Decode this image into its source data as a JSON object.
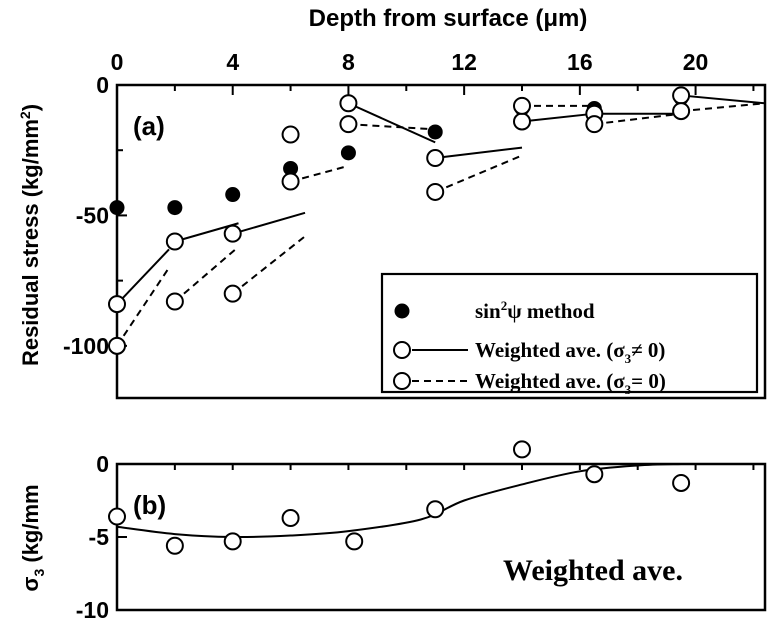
{
  "chart_data": [
    {
      "id": "a",
      "panel_label": "(a)",
      "type": "scatter",
      "xlabel": "Depth from surface (μm)",
      "ylabel_parts": [
        "Residual stress (kg/mm",
        "2",
        ")"
      ],
      "xlim": [
        0,
        22.4
      ],
      "ylim": [
        -120,
        0
      ],
      "x_ticks": [
        0,
        4,
        8,
        12,
        16,
        20
      ],
      "x_minor_ticks": [
        2,
        6,
        10,
        14,
        18,
        22
      ],
      "x_tick_labels": [
        "0",
        "4",
        "8",
        "12",
        "16",
        "20"
      ],
      "y_ticks": [
        0,
        -50,
        -100
      ],
      "y_tick_labels": [
        "0",
        "-50",
        "-100"
      ],
      "y_minor_ticks": [
        -25,
        -75
      ],
      "x_axis_position": "top",
      "legend_position": "bottom-right",
      "legend": [
        {
          "marker": "filled-circle",
          "line": "none",
          "label_parts": [
            "sin",
            "2",
            "ψ method"
          ]
        },
        {
          "marker": "open-circle",
          "line": "solid",
          "label_parts": [
            "Weighted ave. (σ",
            "3",
            "≠ 0)"
          ]
        },
        {
          "marker": "open-circle",
          "line": "dashed",
          "label_parts": [
            "Weighted ave. (σ",
            "3",
            "= 0)"
          ]
        }
      ],
      "series": [
        {
          "name": "sin²ψ method",
          "marker": "filled-circle",
          "points": [
            [
              0,
              -47
            ],
            [
              2,
              -47
            ],
            [
              4,
              -42
            ],
            [
              6,
              -32
            ],
            [
              8,
              -26
            ],
            [
              11,
              -18
            ],
            [
              14,
              -9
            ],
            [
              16.5,
              -9
            ],
            [
              19.5,
              -5
            ]
          ]
        },
        {
          "name": "Weighted ave. (σ₃≠ 0)",
          "marker": "open-circle",
          "line": "solid",
          "points": [
            [
              0,
              -84
            ],
            [
              2,
              -60
            ],
            [
              4,
              -57
            ],
            [
              6,
              -19
            ],
            [
              8,
              -7
            ],
            [
              11,
              -28
            ],
            [
              14,
              -14
            ],
            [
              16.5,
              -11
            ],
            [
              19.5,
              -4
            ]
          ],
          "segments": [
            [
              [
                0,
                -84
              ],
              [
                1.8,
                -63
              ]
            ],
            [
              [
                2,
                -60
              ],
              [
                4.2,
                -53
              ]
            ],
            [
              [
                4,
                -57
              ],
              [
                6.5,
                -49
              ]
            ],
            [
              [
                8,
                -7
              ],
              [
                11,
                -22
              ]
            ],
            [
              [
                11,
                -28
              ],
              [
                14,
                -24
              ]
            ],
            [
              [
                14,
                -14
              ],
              [
                16.5,
                -11
              ]
            ],
            [
              [
                16.5,
                -11
              ],
              [
                19.5,
                -11
              ]
            ],
            [
              [
                19.5,
                -4
              ],
              [
                22.4,
                -7
              ]
            ]
          ]
        },
        {
          "name": "Weighted ave. (σ₃= 0)",
          "marker": "open-circle",
          "line": "dashed",
          "points": [
            [
              0,
              -100
            ],
            [
              2,
              -83
            ],
            [
              4,
              -80
            ],
            [
              6,
              -37
            ],
            [
              8,
              -15
            ],
            [
              11,
              -41
            ],
            [
              14,
              -8
            ],
            [
              16.5,
              -15
            ],
            [
              19.5,
              -10
            ]
          ],
          "segments": [
            [
              [
                0,
                -100
              ],
              [
                1.8,
                -70
              ]
            ],
            [
              [
                2,
                -83
              ],
              [
                4.2,
                -62
              ]
            ],
            [
              [
                4,
                -80
              ],
              [
                6.5,
                -58
              ]
            ],
            [
              [
                6,
                -37
              ],
              [
                8,
                -31
              ]
            ],
            [
              [
                8,
                -15
              ],
              [
                11,
                -17
              ]
            ],
            [
              [
                11,
                -41
              ],
              [
                14,
                -27
              ]
            ],
            [
              [
                14,
                -8
              ],
              [
                16.5,
                -8
              ]
            ],
            [
              [
                16.5,
                -15
              ],
              [
                19.5,
                -11
              ]
            ],
            [
              [
                19.5,
                -10
              ],
              [
                22.4,
                -7
              ]
            ]
          ]
        }
      ]
    },
    {
      "id": "b",
      "panel_label": "(b)",
      "type": "scatter",
      "ylabel_parts": [
        "σ",
        "3",
        " (kg/mm"
      ],
      "xlim": [
        0,
        22.4
      ],
      "ylim": [
        -10,
        0
      ],
      "y_ticks": [
        0,
        -5,
        -10
      ],
      "y_tick_labels": [
        "0",
        "-5",
        "-10"
      ],
      "x_axis_position": "shared-with-a",
      "annotation": "Weighted ave.",
      "series": [
        {
          "name": "Weighted ave.",
          "marker": "open-circle",
          "points": [
            [
              0,
              -3.6
            ],
            [
              2,
              -5.6
            ],
            [
              4,
              -5.3
            ],
            [
              6,
              -3.7
            ],
            [
              8.2,
              -5.3
            ],
            [
              11,
              -3.1
            ],
            [
              14,
              1.0
            ],
            [
              16.5,
              -0.7
            ],
            [
              19.5,
              -1.3
            ]
          ],
          "fit_curve": [
            [
              0,
              -4.3
            ],
            [
              2,
              -4.8
            ],
            [
              4,
              -5.0
            ],
            [
              6,
              -4.9
            ],
            [
              8,
              -4.6
            ],
            [
              10.5,
              -3.8
            ],
            [
              12,
              -2.5
            ],
            [
              14,
              -1.4
            ],
            [
              16,
              -0.5
            ],
            [
              18,
              -0.1
            ],
            [
              19.5,
              0
            ]
          ]
        }
      ]
    }
  ]
}
